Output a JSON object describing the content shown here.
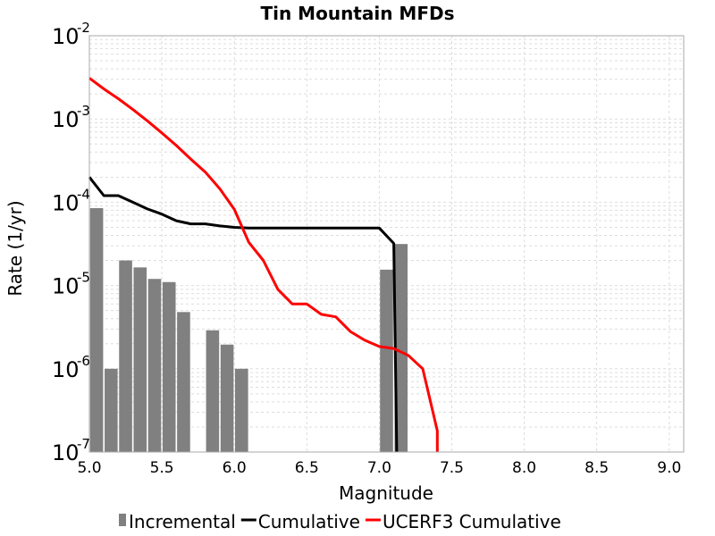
{
  "chart_data": {
    "type": "bar+line",
    "title": "Tin Mountain MFDs",
    "xlabel": "Magnitude",
    "ylabel": "Rate (1/yr)",
    "xlim": [
      5.0,
      9.1
    ],
    "ylim": [
      1e-07,
      0.01
    ],
    "yscale": "log",
    "grid": true,
    "legend_position": "bottom",
    "xticks": [
      "5.0",
      "5.5",
      "6.0",
      "6.5",
      "7.0",
      "7.5",
      "8.0",
      "8.5",
      "9.0"
    ],
    "yticks": [
      {
        "base": "10",
        "exp": "-2",
        "value": 0.01
      },
      {
        "base": "10",
        "exp": "-3",
        "value": 0.001
      },
      {
        "base": "10",
        "exp": "-4",
        "value": 0.0001
      },
      {
        "base": "10",
        "exp": "-5",
        "value": 1e-05
      },
      {
        "base": "10",
        "exp": "-6",
        "value": 1e-06
      },
      {
        "base": "10",
        "exp": "-7",
        "value": 1e-07
      }
    ],
    "series": [
      {
        "name": "Incremental",
        "kind": "bar",
        "color": "#808080",
        "points": [
          {
            "x": 5.05,
            "y": 8.5e-05
          },
          {
            "x": 5.15,
            "y": 1e-06
          },
          {
            "x": 5.25,
            "y": 2e-05
          },
          {
            "x": 5.35,
            "y": 1.65e-05
          },
          {
            "x": 5.45,
            "y": 1.2e-05
          },
          {
            "x": 5.55,
            "y": 1.1e-05
          },
          {
            "x": 5.65,
            "y": 4.8e-06
          },
          {
            "x": 5.85,
            "y": 2.9e-06
          },
          {
            "x": 5.95,
            "y": 1.95e-06
          },
          {
            "x": 6.05,
            "y": 1e-06
          },
          {
            "x": 7.05,
            "y": 1.55e-05
          },
          {
            "x": 7.15,
            "y": 3.15e-05
          }
        ]
      },
      {
        "name": "Cumulative",
        "kind": "line",
        "color": "#000000",
        "points": [
          {
            "x": 5.0,
            "y": 0.0002
          },
          {
            "x": 5.1,
            "y": 0.00012
          },
          {
            "x": 5.2,
            "y": 0.00012
          },
          {
            "x": 5.3,
            "y": 0.0001
          },
          {
            "x": 5.4,
            "y": 8.3e-05
          },
          {
            "x": 5.5,
            "y": 7.2e-05
          },
          {
            "x": 5.6,
            "y": 6e-05
          },
          {
            "x": 5.7,
            "y": 5.5e-05
          },
          {
            "x": 5.8,
            "y": 5.5e-05
          },
          {
            "x": 5.9,
            "y": 5.2e-05
          },
          {
            "x": 6.0,
            "y": 5e-05
          },
          {
            "x": 6.1,
            "y": 4.9e-05
          },
          {
            "x": 6.5,
            "y": 4.9e-05
          },
          {
            "x": 7.0,
            "y": 4.9e-05
          },
          {
            "x": 7.1,
            "y": 3.2e-05
          },
          {
            "x": 7.12,
            "y": 1e-07
          }
        ]
      },
      {
        "name": "UCERF3 Cumulative",
        "kind": "line",
        "color": "#ff0000",
        "points": [
          {
            "x": 5.0,
            "y": 0.0031
          },
          {
            "x": 5.1,
            "y": 0.0023
          },
          {
            "x": 5.2,
            "y": 0.00175
          },
          {
            "x": 5.3,
            "y": 0.0013
          },
          {
            "x": 5.4,
            "y": 0.00095
          },
          {
            "x": 5.5,
            "y": 0.00068
          },
          {
            "x": 5.6,
            "y": 0.00048
          },
          {
            "x": 5.7,
            "y": 0.00033
          },
          {
            "x": 5.8,
            "y": 0.00023
          },
          {
            "x": 5.9,
            "y": 0.000145
          },
          {
            "x": 6.0,
            "y": 8.2e-05
          },
          {
            "x": 6.1,
            "y": 3.3e-05
          },
          {
            "x": 6.2,
            "y": 2e-05
          },
          {
            "x": 6.3,
            "y": 9e-06
          },
          {
            "x": 6.4,
            "y": 6e-06
          },
          {
            "x": 6.5,
            "y": 6e-06
          },
          {
            "x": 6.6,
            "y": 4.5e-06
          },
          {
            "x": 6.7,
            "y": 4.2e-06
          },
          {
            "x": 6.8,
            "y": 2.8e-06
          },
          {
            "x": 6.9,
            "y": 2.2e-06
          },
          {
            "x": 7.0,
            "y": 1.85e-06
          },
          {
            "x": 7.1,
            "y": 1.75e-06
          },
          {
            "x": 7.2,
            "y": 1.45e-06
          },
          {
            "x": 7.3,
            "y": 1e-06
          },
          {
            "x": 7.4,
            "y": 1.8e-07
          },
          {
            "x": 7.4,
            "y": 1e-07
          }
        ]
      }
    ]
  }
}
